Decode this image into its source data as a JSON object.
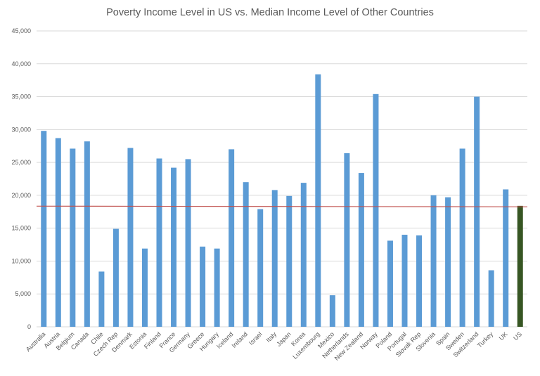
{
  "chart_data": {
    "type": "bar",
    "title": "Poverty Income Level in US vs. Median Income Level of Other Countries",
    "xlabel": "",
    "ylabel": "",
    "ylim": [
      0,
      45000
    ],
    "yticks": [
      0,
      5000,
      10000,
      15000,
      20000,
      25000,
      30000,
      35000,
      40000,
      45000
    ],
    "ytick_labels": [
      "0",
      "5,000",
      "10,000",
      "15,000",
      "20,000",
      "25,000",
      "30,000",
      "35,000",
      "40,000",
      "45,000"
    ],
    "grid": true,
    "categories": [
      "Australia",
      "Austria",
      "Belgium",
      "Canada",
      "Chile",
      "Czech Rep",
      "Denmark",
      "Estonia",
      "Finland",
      "France",
      "Germany",
      "Greece",
      "Hungary",
      "Iceland",
      "Ireland",
      "Israel",
      "Italy",
      "Japan",
      "Korea",
      "Luxembourg",
      "Mexico",
      "Netherlands",
      "New Zealand",
      "Norway",
      "Poland",
      "Portugal",
      "Slovak Rep",
      "Slovenia",
      "Spain",
      "Sweden",
      "Switzerland",
      "Turkey",
      "UK",
      "US"
    ],
    "values": [
      29800,
      28700,
      27100,
      28200,
      8400,
      14900,
      27200,
      11900,
      25600,
      24200,
      25500,
      12200,
      11900,
      27000,
      22000,
      17900,
      20800,
      19900,
      21900,
      38400,
      4800,
      26400,
      23400,
      35400,
      13100,
      14000,
      13900,
      20000,
      19700,
      27100,
      35000,
      8600,
      20900,
      18400
    ],
    "highlight_category": "US",
    "reference_line": 18300,
    "colors": {
      "bar": "#5b9bd5",
      "highlight": "#375623",
      "reference_line": "#c0504d",
      "grid": "#d9d9d9"
    }
  }
}
